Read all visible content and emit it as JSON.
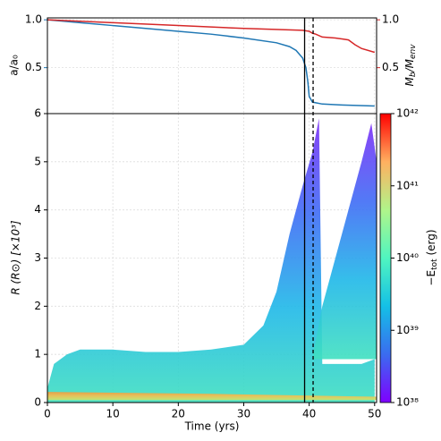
{
  "chart_data": [
    {
      "type": "line",
      "xlim": [
        0,
        50.3
      ],
      "xticks": [
        0,
        10,
        20,
        30,
        40,
        50
      ],
      "ylim": [
        0.02,
        1.02
      ],
      "yticks": [
        {
          "value": 0.5,
          "label": "0.5"
        },
        {
          "value": 1.0,
          "label": "1.0"
        }
      ],
      "y2lim": [
        0.02,
        1.02
      ],
      "y2ticks": [
        {
          "value": 0.5,
          "label": "0.5"
        },
        {
          "value": 1.0,
          "label": "1.0"
        }
      ],
      "ylabel": "a/a₀",
      "y2label": [
        "M",
        "b",
        "/M",
        "env"
      ],
      "grid": true,
      "vlines": [
        {
          "x": 39.3,
          "style": "solid"
        },
        {
          "x": 40.6,
          "style": "dashed"
        }
      ],
      "series": [
        {
          "color": "#1f77b4",
          "x": [
            0,
            5,
            10,
            15,
            20,
            25,
            30,
            35,
            37,
            38,
            39,
            39.5,
            39.8,
            40,
            40.5,
            42,
            45,
            50
          ],
          "values": [
            1.0,
            0.97,
            0.94,
            0.91,
            0.88,
            0.85,
            0.81,
            0.76,
            0.72,
            0.68,
            0.6,
            0.5,
            0.35,
            0.2,
            0.14,
            0.12,
            0.11,
            0.1
          ]
        },
        {
          "color": "#d62728",
          "axis": "y2",
          "x": [
            0,
            10,
            20,
            30,
            39,
            40,
            40.5,
            41,
            42,
            44,
            45,
            46,
            47,
            48,
            50
          ],
          "values": [
            1.0,
            0.97,
            0.94,
            0.91,
            0.89,
            0.88,
            0.86,
            0.85,
            0.82,
            0.81,
            0.8,
            0.79,
            0.74,
            0.7,
            0.66
          ]
        }
      ]
    },
    {
      "type": "area",
      "xlim": [
        0,
        50.3
      ],
      "xticks": [
        0,
        10,
        20,
        30,
        40,
        50
      ],
      "ylim": [
        0,
        6
      ],
      "yticks": [
        0,
        1,
        2,
        3,
        4,
        5,
        6
      ],
      "xlabel": "Time (yrs)",
      "ylabel": "R (R⊙) [×10³]",
      "grid": true,
      "series": [
        {
          "colors": [
            "#7b2ff7",
            "#3f6cf5",
            "#1fb8e8",
            "#40e0c0"
          ],
          "x": [
            0,
            1,
            3,
            5,
            10,
            15,
            20,
            25,
            30,
            33,
            35,
            37,
            39,
            40.5,
            41.5,
            42,
            45,
            48,
            50
          ],
          "values": [
            0.3,
            0.8,
            1.0,
            1.1,
            1.1,
            1.05,
            1.05,
            1.1,
            1.2,
            1.6,
            2.3,
            3.5,
            4.5,
            5.2,
            5.9,
            0.8,
            0.8,
            0.8,
            0.9
          ],
          "lower": [
            0,
            0,
            0,
            0,
            0,
            0,
            0,
            0,
            0,
            0,
            0,
            0,
            0,
            0,
            0,
            0,
            0,
            0,
            0
          ]
        },
        {
          "colors": [
            "#7b2ff7",
            "#3f6cf5",
            "#1fb8e8",
            "#40e0c0"
          ],
          "x": [
            40.6,
            42,
            44,
            46,
            48,
            49.5,
            50.3
          ],
          "values": [
            1.0,
            2.0,
            3.0,
            4.0,
            5.0,
            5.8,
            5.0
          ],
          "lower": [
            0.9,
            0.9,
            0.9,
            0.9,
            0.9,
            0.9,
            0.9
          ]
        },
        {
          "colors": [
            "#f59a3a",
            "#f5c050",
            "#c8e870"
          ],
          "x": [
            0,
            25,
            50.3
          ],
          "values": [
            0.22,
            0.18,
            0.12
          ],
          "lower": [
            0.05,
            0.05,
            0.05
          ]
        }
      ],
      "colorbar": {
        "label": [
          "−E",
          "tot",
          " (erg)"
        ],
        "lim": [
          38,
          42
        ],
        "ticks": [
          {
            "value": 38,
            "label": "10³⁸"
          },
          {
            "value": 39,
            "label": "10³⁹"
          },
          {
            "value": 40,
            "label": "10⁴⁰"
          },
          {
            "value": 41,
            "label": "10⁴¹"
          },
          {
            "value": 42,
            "label": "10⁴²"
          }
        ],
        "colors": [
          "#7f00ff",
          "#3a6cf0",
          "#14c0e6",
          "#50f5c0",
          "#b0f58a",
          "#ffb060",
          "#ff0000"
        ]
      }
    }
  ]
}
